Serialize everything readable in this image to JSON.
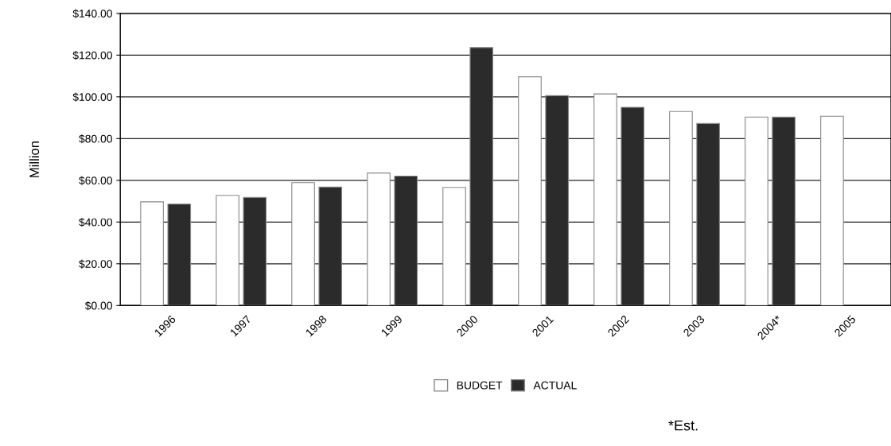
{
  "chart_data": {
    "type": "bar",
    "ylabel": "Million",
    "categories": [
      "1996",
      "1997",
      "1998",
      "1999",
      "2000",
      "2001",
      "2002",
      "2003",
      "2004*",
      "2005"
    ],
    "series": [
      {
        "name": "BUDGET",
        "color": "#ffffff",
        "values": [
          49.7,
          52.8,
          58.9,
          63.5,
          56.6,
          109.6,
          101.4,
          93,
          90.3,
          90.7
        ]
      },
      {
        "name": "ACTUAL",
        "color": "#2b2b2b",
        "values": [
          48.6,
          51.8,
          56.8,
          62,
          123.6,
          100.6,
          95,
          87.2,
          90.3,
          null
        ]
      }
    ],
    "ylim": [
      0,
      140
    ],
    "yticks": [
      {
        "value": 0,
        "label": "$0.00"
      },
      {
        "value": 20,
        "label": "$20.00"
      },
      {
        "value": 40,
        "label": "$40.00"
      },
      {
        "value": 60,
        "label": "$60.00"
      },
      {
        "value": 80,
        "label": "$80.00"
      },
      {
        "value": 100,
        "label": "$100.00"
      },
      {
        "value": 120,
        "label": "$120.00"
      },
      {
        "value": 140,
        "label": "$140.00"
      }
    ],
    "grid": "y",
    "legend": "bottom",
    "annotations": [
      "*Est."
    ]
  }
}
